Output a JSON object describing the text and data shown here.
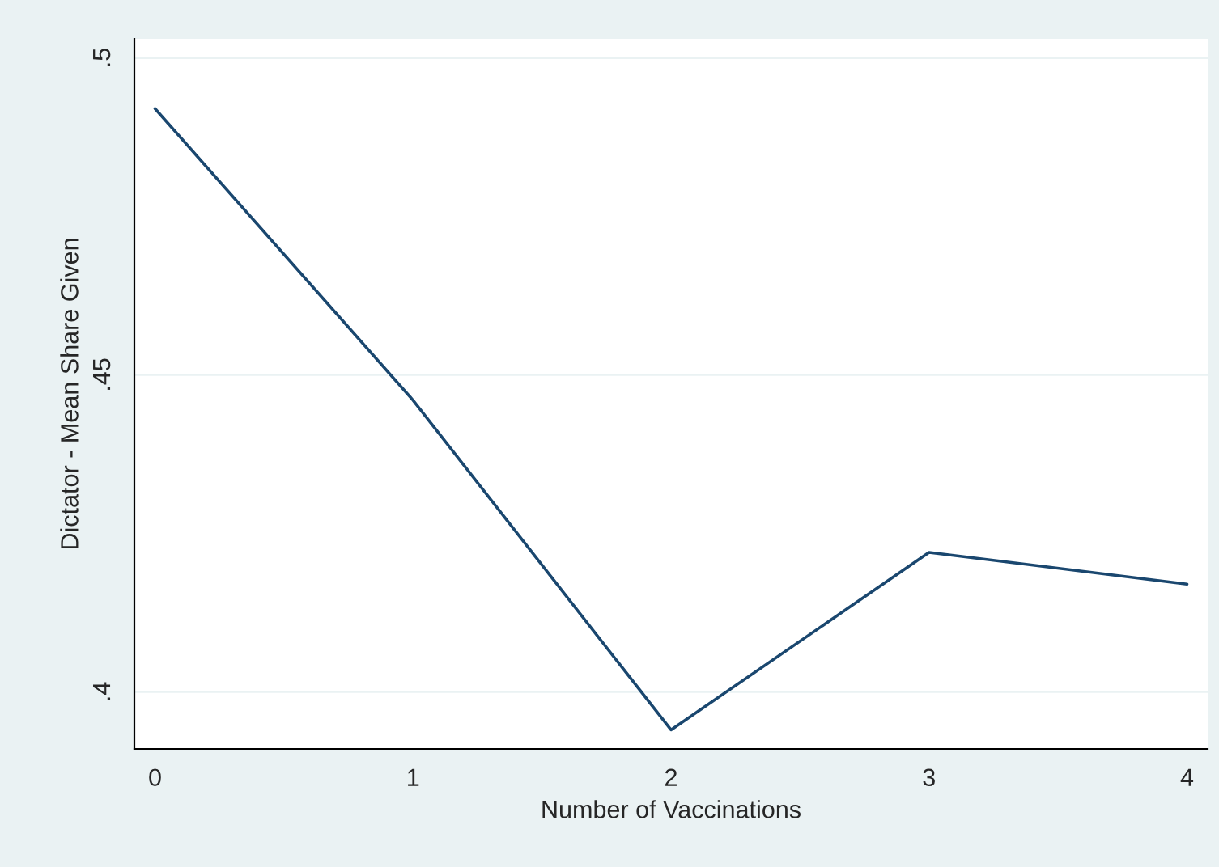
{
  "chart_data": {
    "type": "line",
    "xlabel": "Number of Vaccinations",
    "ylabel": "Dictator - Mean Share Given",
    "x": [
      0,
      1,
      2,
      3,
      4
    ],
    "series": [
      {
        "color": "#1a476f",
        "values": [
          0.492,
          0.446,
          0.394,
          0.422,
          0.417
        ]
      }
    ],
    "xlim": [
      -0.08,
      4.08
    ],
    "xticks": [
      0,
      1,
      2,
      3,
      4
    ],
    "ylim": [
      0.391,
      0.503
    ],
    "yticks": [
      {
        "value": 0.4,
        "label": ".4"
      },
      {
        "value": 0.45,
        "label": ".45"
      },
      {
        "value": 0.5,
        "label": ".5"
      }
    ],
    "grid": "y",
    "marker": "none",
    "line_style": "solid"
  }
}
